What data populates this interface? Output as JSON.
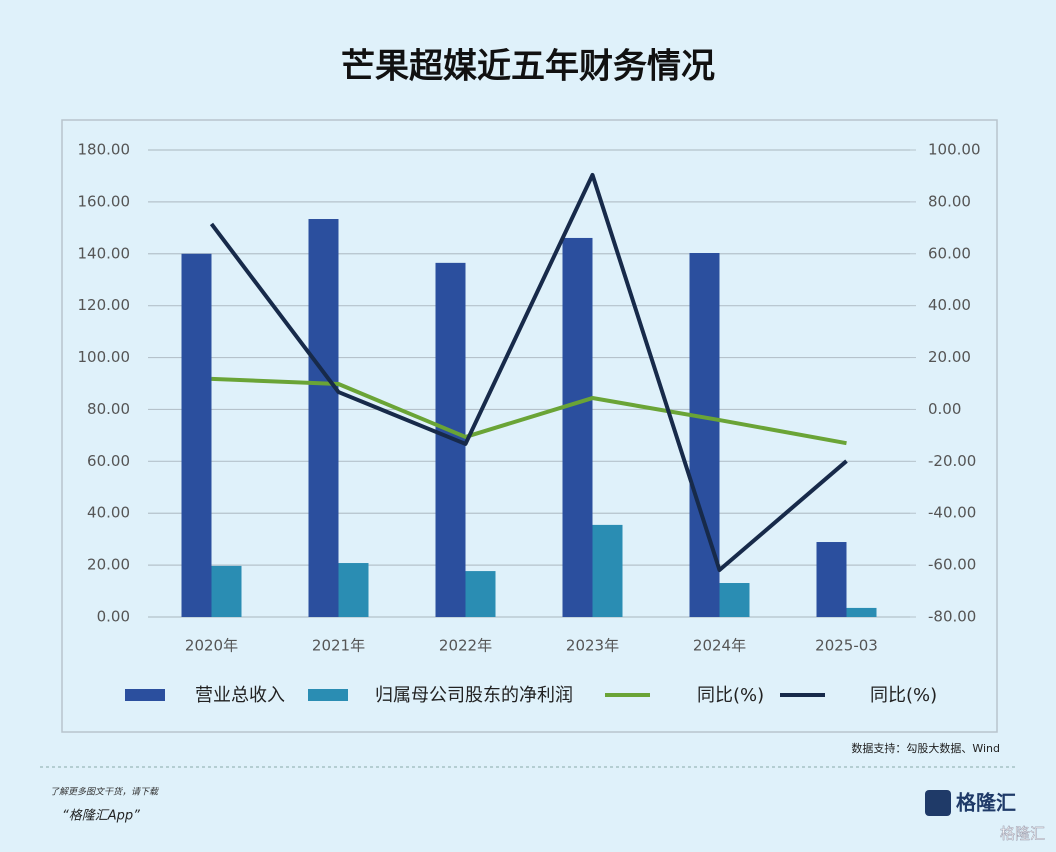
{
  "chart_data": {
    "type": "bar",
    "title": "芒果超媒近五年财务情况",
    "categories": [
      "2020年",
      "2021年",
      "2022年",
      "2023年",
      "2024年",
      "2025-03"
    ],
    "series": [
      {
        "name": "营业总收入",
        "color": "#2b4f9e",
        "type": "bar",
        "values": [
          140.0,
          153.4,
          136.5,
          146.1,
          140.3,
          28.9
        ]
      },
      {
        "name": "归属母公司股东的净利润",
        "color": "#2a8db3",
        "type": "bar",
        "values": [
          19.7,
          20.8,
          17.7,
          35.5,
          13.1,
          3.5
        ]
      },
      {
        "name": "同比(%)",
        "color": "#6aa436",
        "type": "line",
        "axis": "y2",
        "values": [
          11.8,
          9.8,
          -10.6,
          4.4,
          -4.1,
          -13.0
        ]
      },
      {
        "name": "同比(%)",
        "color": "#172a4a",
        "type": "line",
        "axis": "y2",
        "values": [
          71.5,
          6.7,
          -13.3,
          90.4,
          -61.9,
          -19.9
        ]
      }
    ],
    "ylim": [
      0,
      180
    ],
    "yticks": [
      {
        "value": 0,
        "label": "0.00"
      },
      {
        "value": 20,
        "label": "20.00"
      },
      {
        "value": 40,
        "label": "40.00"
      },
      {
        "value": 60,
        "label": "60.00"
      },
      {
        "value": 80,
        "label": "80.00"
      },
      {
        "value": 100,
        "label": "100.00"
      },
      {
        "value": 120,
        "label": "120.00"
      },
      {
        "value": 140,
        "label": "140.00"
      },
      {
        "value": 160,
        "label": "160.00"
      },
      {
        "value": 180,
        "label": "180.00"
      }
    ],
    "y2lim": [
      -80,
      100
    ],
    "y2ticks": [
      {
        "value": -80,
        "label": "-80.00"
      },
      {
        "value": -60,
        "label": "-60.00"
      },
      {
        "value": -40,
        "label": "-40.00"
      },
      {
        "value": -20,
        "label": "-20.00"
      },
      {
        "value": 0,
        "label": "0.00"
      },
      {
        "value": 20,
        "label": "20.00"
      },
      {
        "value": 40,
        "label": "40.00"
      },
      {
        "value": 60,
        "label": "60.00"
      },
      {
        "value": 80,
        "label": "80.00"
      },
      {
        "value": 100,
        "label": "100.00"
      }
    ],
    "grid": true,
    "legend": "bottom",
    "source": "数据支持：勾股大数据、Wind"
  },
  "footer": {
    "note": "了解更多图文干货，请下载",
    "app": "“格隆汇App”",
    "logo": "格隆汇",
    "watermark": "格隆汇"
  }
}
